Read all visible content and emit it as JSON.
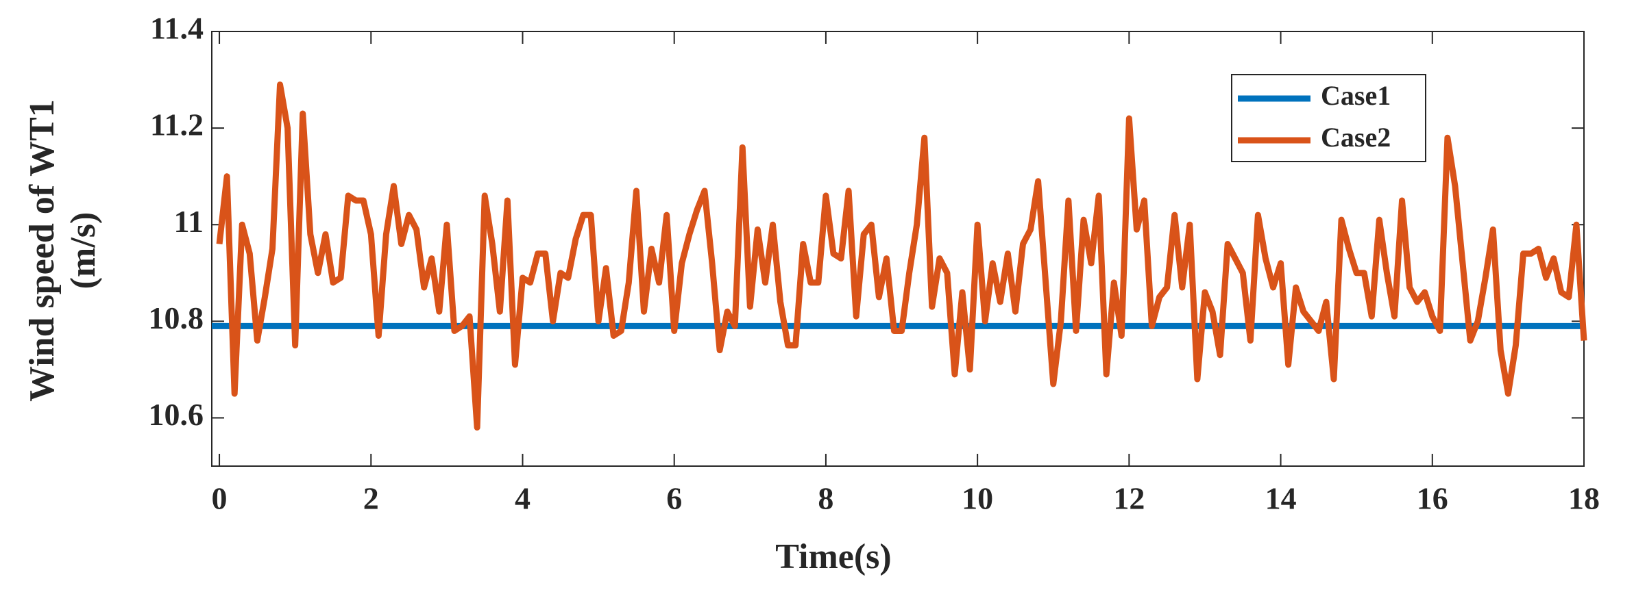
{
  "chart_data": {
    "type": "line",
    "xlabel": "Time(s)",
    "ylabel": [
      "Wind speed of WT1",
      "(m/s)"
    ],
    "xlim": [
      -0.1,
      18
    ],
    "ylim": [
      10.5,
      11.4
    ],
    "xticks": [
      0,
      2,
      4,
      6,
      8,
      10,
      12,
      14,
      16,
      18
    ],
    "yticks": [
      10.6,
      10.8,
      11,
      11.2,
      11.4
    ],
    "legend": "upper right",
    "x": [
      0,
      0.1,
      0.2,
      0.3,
      0.4,
      0.5,
      0.6,
      0.7,
      0.8,
      0.9,
      1,
      1.1,
      1.2,
      1.3,
      1.4,
      1.5,
      1.6,
      1.7,
      1.8,
      1.9,
      2,
      2.1,
      2.2,
      2.3,
      2.4,
      2.5,
      2.6,
      2.7,
      2.8,
      2.9,
      3,
      3.1,
      3.2,
      3.3,
      3.4,
      3.5,
      3.6,
      3.7,
      3.8,
      3.9,
      4,
      4.1,
      4.2,
      4.3,
      4.4,
      4.5,
      4.6,
      4.7,
      4.8,
      4.9,
      5,
      5.1,
      5.2,
      5.3,
      5.4,
      5.5,
      5.6,
      5.7,
      5.8,
      5.9,
      6,
      6.1,
      6.2,
      6.3,
      6.4,
      6.5,
      6.6,
      6.7,
      6.8,
      6.9,
      7,
      7.1,
      7.2,
      7.3,
      7.4,
      7.5,
      7.6,
      7.7,
      7.8,
      7.9,
      8,
      8.1,
      8.2,
      8.3,
      8.4,
      8.5,
      8.6,
      8.7,
      8.8,
      8.9,
      9,
      9.1,
      9.2,
      9.3,
      9.4,
      9.5,
      9.6,
      9.7,
      9.8,
      9.9,
      10,
      10.1,
      10.2,
      10.3,
      10.4,
      10.5,
      10.6,
      10.7,
      10.8,
      10.9,
      11,
      11.1,
      11.2,
      11.3,
      11.4,
      11.5,
      11.6,
      11.7,
      11.8,
      11.9,
      12,
      12.1,
      12.2,
      12.3,
      12.4,
      12.5,
      12.6,
      12.7,
      12.8,
      12.9,
      13,
      13.1,
      13.2,
      13.3,
      13.4,
      13.5,
      13.6,
      13.7,
      13.8,
      13.9,
      14,
      14.1,
      14.2,
      14.3,
      14.4,
      14.5,
      14.6,
      14.7,
      14.8,
      14.9,
      15,
      15.1,
      15.2,
      15.3,
      15.4,
      15.5,
      15.6,
      15.7,
      15.8,
      15.9,
      16,
      16.1,
      16.2,
      16.3,
      16.4,
      16.5,
      16.6,
      16.7,
      16.8,
      16.9,
      17,
      17.1,
      17.2,
      17.3,
      17.4,
      17.5,
      17.6,
      17.7,
      17.8,
      17.9,
      18
    ],
    "series": [
      {
        "name": "Case1",
        "color": "#0072bd",
        "x": [
          -0.1,
          18
        ],
        "values": [
          10.79,
          10.79
        ]
      },
      {
        "name": "Case2",
        "color": "#d95319",
        "values": [
          10.96,
          11.1,
          10.65,
          11.0,
          10.94,
          10.76,
          10.85,
          10.95,
          11.29,
          11.2,
          10.75,
          11.23,
          10.98,
          10.9,
          10.98,
          10.88,
          10.89,
          11.06,
          11.05,
          11.05,
          10.98,
          10.77,
          10.98,
          11.08,
          10.96,
          11.02,
          10.99,
          10.87,
          10.93,
          10.82,
          11.0,
          10.78,
          10.79,
          10.81,
          10.58,
          11.06,
          10.96,
          10.82,
          11.05,
          10.71,
          10.89,
          10.88,
          10.94,
          10.94,
          10.8,
          10.9,
          10.89,
          10.97,
          11.02,
          11.02,
          10.8,
          10.91,
          10.77,
          10.78,
          10.88,
          11.07,
          10.82,
          10.95,
          10.88,
          11.02,
          10.78,
          10.92,
          10.98,
          11.03,
          11.07,
          10.92,
          10.74,
          10.82,
          10.79,
          11.16,
          10.83,
          10.99,
          10.88,
          11.0,
          10.84,
          10.75,
          10.75,
          10.96,
          10.88,
          10.88,
          11.06,
          10.94,
          10.93,
          11.07,
          10.81,
          10.98,
          11.0,
          10.85,
          10.93,
          10.78,
          10.78,
          10.9,
          11.0,
          11.18,
          10.83,
          10.93,
          10.9,
          10.69,
          10.86,
          10.7,
          11.0,
          10.8,
          10.92,
          10.84,
          10.94,
          10.82,
          10.96,
          10.99,
          11.09,
          10.88,
          10.67,
          10.8,
          11.05,
          10.78,
          11.01,
          10.92,
          11.06,
          10.69,
          10.88,
          10.77,
          11.22,
          10.99,
          11.05,
          10.79,
          10.85,
          10.87,
          11.02,
          10.87,
          11.0,
          10.68,
          10.86,
          10.82,
          10.73,
          10.96,
          10.93,
          10.9,
          10.76,
          11.02,
          10.93,
          10.87,
          10.92,
          10.71,
          10.87,
          10.82,
          10.8,
          10.78,
          10.84,
          10.68,
          11.01,
          10.95,
          10.9,
          10.9,
          10.81,
          11.01,
          10.9,
          10.81,
          11.05,
          10.87,
          10.84,
          10.86,
          10.81,
          10.78,
          11.18,
          11.08,
          10.92,
          10.76,
          10.8,
          10.89,
          10.99,
          10.74,
          10.65,
          10.75,
          10.94,
          10.94,
          10.95,
          10.89,
          10.93,
          10.86,
          10.85,
          11.0,
          10.76
        ]
      }
    ]
  }
}
